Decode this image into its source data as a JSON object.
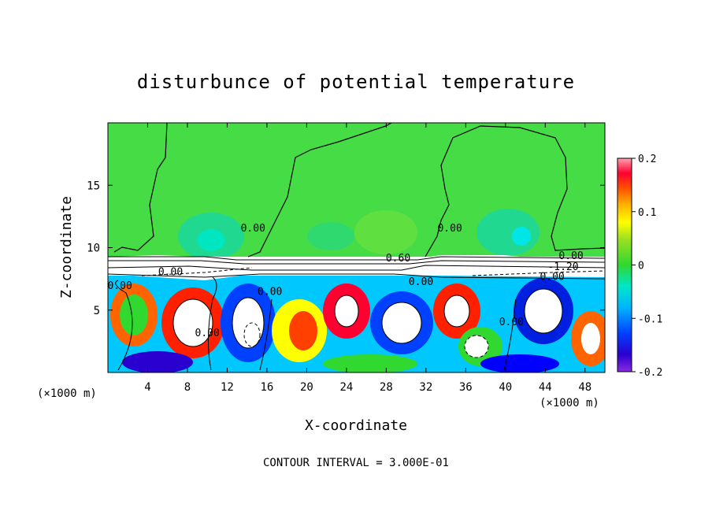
{
  "chart_data": {
    "type": "heatmap",
    "title": "disturbunce of potential temperature",
    "xlabel": "X-coordinate",
    "ylabel": "Z-coordinate",
    "x_unit": "(×1000 m)",
    "x_unit_right": "(×1000 m)",
    "footer": "CONTOUR INTERVAL = 3.000E-01",
    "xlim": [
      0,
      50
    ],
    "ylim": [
      0,
      20
    ],
    "x_ticks": [
      4,
      8,
      12,
      16,
      20,
      24,
      28,
      32,
      36,
      40,
      44,
      48
    ],
    "y_ticks": [
      5,
      10,
      15
    ],
    "colorbar": {
      "range": [
        -0.2,
        0.2
      ],
      "ticks": [
        -0.2,
        -0.1,
        0,
        0.1,
        0.2
      ],
      "tick_labels": [
        "-0.2",
        "-0.1",
        "0",
        "0.1",
        "0.2"
      ],
      "colors": [
        "#8a2be2",
        "#3a00c8",
        "#0000ff",
        "#0050ff",
        "#0096ff",
        "#00c8ff",
        "#00e6e6",
        "#00e6a0",
        "#00d26e",
        "#30d830",
        "#5ae048",
        "#86e030",
        "#c8e600",
        "#ffff00",
        "#ffc800",
        "#ff9600",
        "#ff6400",
        "#ff2000",
        "#ff0050",
        "#ff90a0"
      ]
    },
    "contour_labels": [
      {
        "text": "0.00",
        "x": 14.6,
        "z": 11.3
      },
      {
        "text": "0.00",
        "x": 34.4,
        "z": 11.3
      },
      {
        "text": "0.00",
        "x": 46.6,
        "z": 9.1
      },
      {
        "text": "0.60",
        "x": 29.2,
        "z": 8.9
      },
      {
        "text": "0.00",
        "x": 6.3,
        "z": 7.8
      },
      {
        "text": "-1.20",
        "x": 45.8,
        "z": 8.2
      },
      {
        "text": "0.00",
        "x": 44.7,
        "z": 7.4
      },
      {
        "text": "0.00",
        "x": 31.5,
        "z": 7.0
      },
      {
        "text": "0.00",
        "x": 16.3,
        "z": 6.2
      },
      {
        "text": "0.00",
        "x": 1.2,
        "z": 6.7
      },
      {
        "text": "0.00",
        "x": 40.6,
        "z": 3.8
      },
      {
        "text": "0.00",
        "x": 10.0,
        "z": 2.9
      }
    ]
  }
}
